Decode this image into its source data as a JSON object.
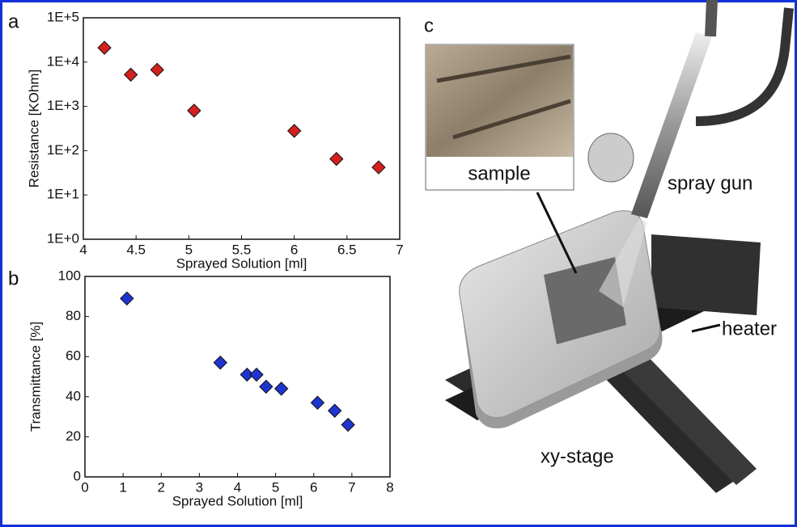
{
  "chart_data": [
    {
      "type": "scatter",
      "panel_label": "a",
      "x_label": "Sprayed Solution [ml]",
      "y_label": "Resistance [KOhm]",
      "x": [
        4.2,
        4.45,
        4.7,
        5.05,
        6.0,
        6.4,
        6.8
      ],
      "series": [
        {
          "color": "#d42020",
          "values": [
            21000,
            5200,
            6700,
            800,
            280,
            65,
            42
          ]
        }
      ],
      "xlim": [
        4,
        7
      ],
      "xticks": [
        4,
        4.5,
        5,
        5.5,
        6,
        6.5,
        7
      ],
      "ylim": [
        1,
        100000
      ],
      "y_log": true,
      "yticks": [
        {
          "value": 1,
          "label": "1E+0"
        },
        {
          "value": 10,
          "label": "1E+1"
        },
        {
          "value": 100,
          "label": "1E+2"
        },
        {
          "value": 1000,
          "label": "1E+3"
        },
        {
          "value": 10000,
          "label": "1E+4"
        },
        {
          "value": 100000,
          "label": "1E+5"
        }
      ]
    },
    {
      "type": "scatter",
      "panel_label": "b",
      "x_label": "Sprayed Solution [ml]",
      "y_label": "Transmittance [%]",
      "x": [
        1.1,
        3.55,
        4.25,
        4.5,
        4.75,
        5.15,
        6.1,
        6.55,
        6.9
      ],
      "series": [
        {
          "color": "#1f35d0",
          "values": [
            89,
            57,
            51,
            51,
            45,
            44,
            37,
            33,
            26
          ]
        }
      ],
      "xlim": [
        0,
        8
      ],
      "xticks": [
        0,
        1,
        2,
        3,
        4,
        5,
        6,
        7,
        8
      ],
      "ylim": [
        0,
        100
      ],
      "y_log": false,
      "yticks": [
        0,
        20,
        40,
        60,
        80,
        100
      ]
    }
  ],
  "illustration": {
    "panel_label": "c",
    "sample": "sample",
    "spray_gun": "spray gun",
    "heater": "heater",
    "stage": "xy-stage"
  }
}
